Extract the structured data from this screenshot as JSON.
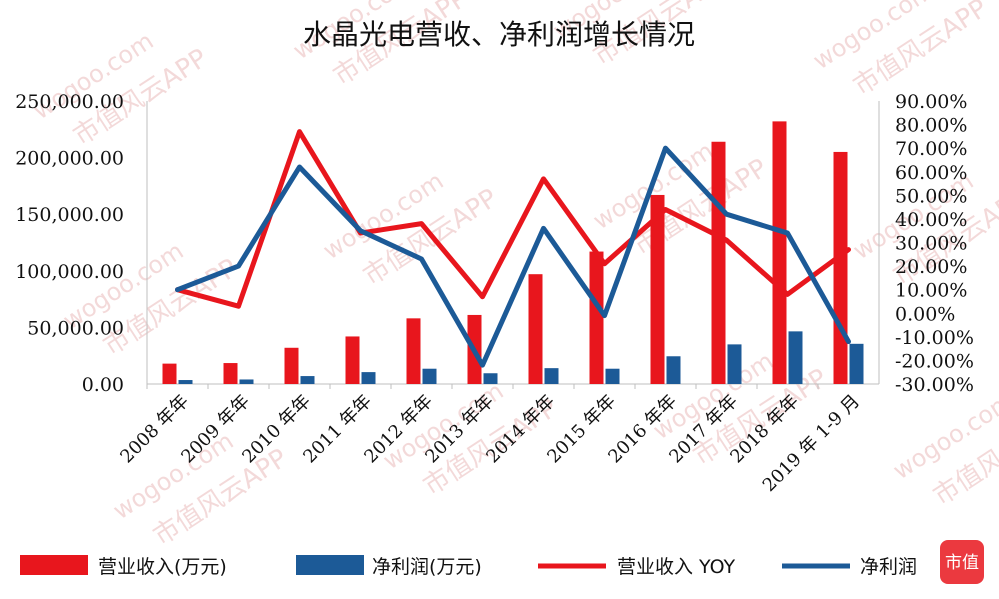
{
  "chart_data": {
    "type": "bar",
    "title": "水晶光电营收、净利润增长情况",
    "categories": [
      "2008 年年",
      "2009 年年",
      "2010 年年",
      "2011 年年",
      "2012 年年",
      "2013 年年",
      "2014 年年",
      "2015 年年",
      "2016 年年",
      "2017 年年",
      "2018 年年",
      "2019 年 1-9 月"
    ],
    "y_left": {
      "ylim": [
        0,
        250000
      ],
      "ticks": [
        "0.00",
        "50,000.00",
        "100,000.00",
        "150,000.00",
        "200,000.00",
        "250,000.00"
      ]
    },
    "y_right": {
      "ylim": [
        -30,
        90
      ],
      "ticks": [
        "-30.00%",
        "-20.00%",
        "-10.00%",
        "0.00%",
        "10.00%",
        "20.00%",
        "30.00%",
        "40.00%",
        "50.00%",
        "60.00%",
        "70.00%",
        "80.00%",
        "90.00%"
      ]
    },
    "series": [
      {
        "name": "营业收入(万元)",
        "type": "bar",
        "axis": "left",
        "color": "#e8161d",
        "values": [
          18000,
          18500,
          32000,
          42000,
          58000,
          61000,
          97000,
          117000,
          167000,
          214000,
          232000,
          205000
        ]
      },
      {
        "name": "净利润(万元)",
        "type": "bar",
        "axis": "left",
        "color": "#1c5a97",
        "values": [
          3500,
          4000,
          7000,
          10500,
          13500,
          9500,
          14000,
          13500,
          24500,
          35000,
          46500,
          35500
        ]
      },
      {
        "name": "营业收入 YOY",
        "type": "line",
        "axis": "right",
        "color": "#e8161d",
        "values": [
          10,
          3,
          77,
          34,
          38,
          7,
          57,
          21,
          44,
          31,
          8,
          27
        ]
      },
      {
        "name": "净利润 YOY",
        "type": "line",
        "axis": "right",
        "color": "#1c5a97",
        "values": [
          10,
          20,
          62,
          35,
          23,
          -22,
          36,
          -1,
          70,
          42,
          34,
          -12
        ]
      }
    ],
    "legend": {
      "placement": "bottom",
      "labels": [
        "营业收入(万元)",
        "净利润(万元)",
        "营业收入 YOY",
        "净利润"
      ]
    },
    "grid": false
  },
  "watermarks": {
    "site": "wogoo.com",
    "app": "市值风云APP",
    "badge": "市值"
  }
}
